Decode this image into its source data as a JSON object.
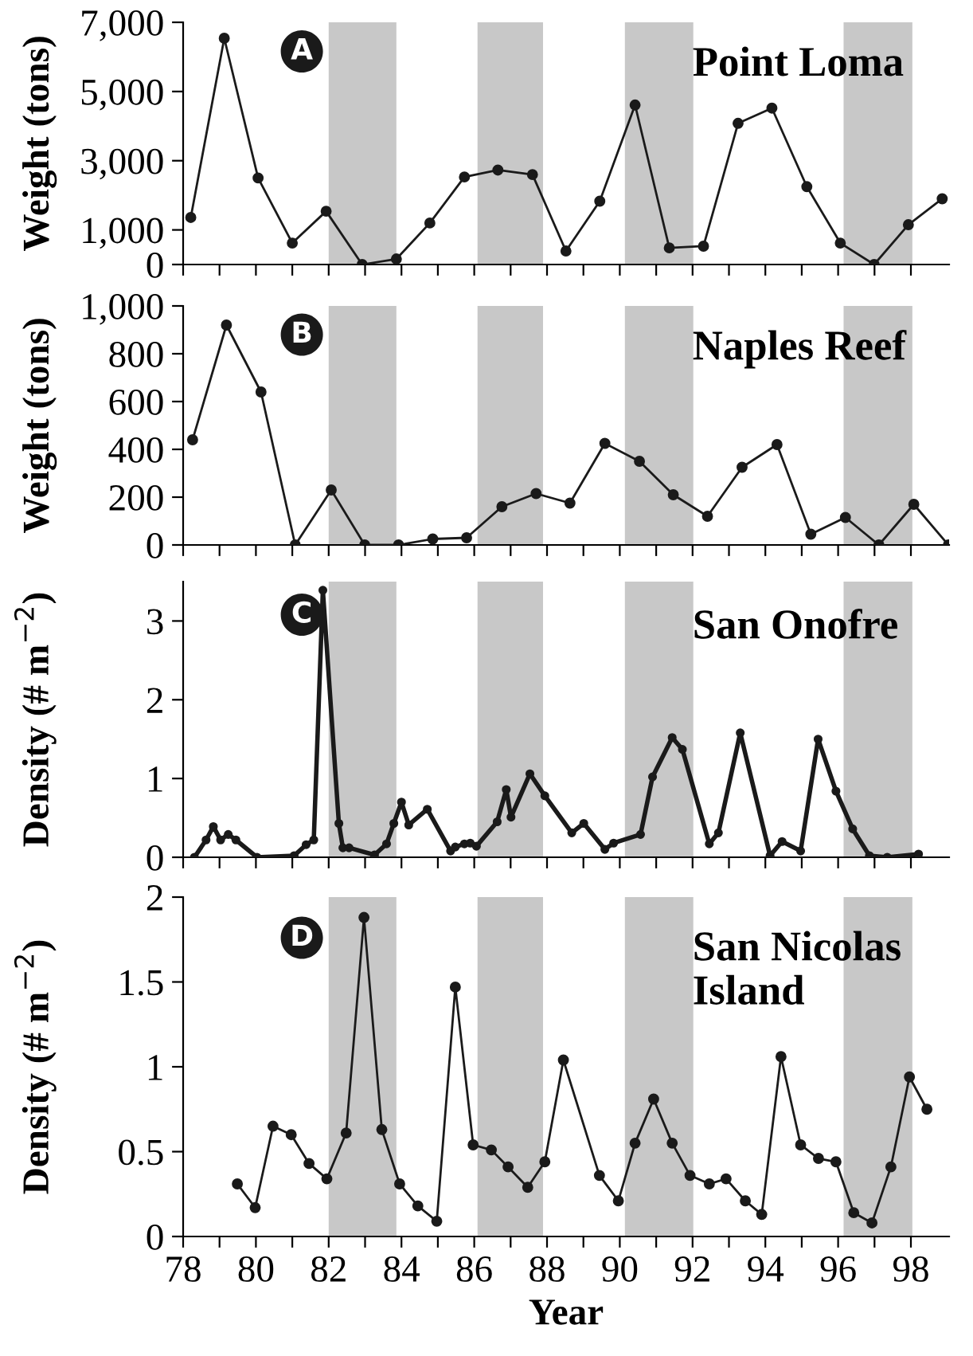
{
  "chart_data": [
    {
      "type": "line",
      "title": "Point Loma",
      "ylabel": "Weight (tons)",
      "annotations": [
        "A"
      ],
      "marker": "circle",
      "tick_labels": "y",
      "x": [
        78.21,
        79.13,
        80.06,
        81.0,
        81.93,
        82.92,
        83.86,
        84.78,
        85.73,
        86.65,
        87.6,
        88.52,
        89.45,
        90.42,
        91.36,
        92.3,
        93.25,
        94.18,
        95.14,
        96.06,
        96.99,
        97.93,
        98.86
      ],
      "series": [
        {
          "color": "#1a1a1a",
          "values": [
            1360,
            6540,
            2500,
            620,
            1540,
            0,
            160,
            1200,
            2530,
            2730,
            2600,
            390,
            1830,
            4610,
            480,
            530,
            4080,
            4520,
            2250,
            620,
            0,
            1150,
            1900
          ]
        }
      ],
      "bands": [
        {
          "axis": "x",
          "from": 82,
          "to": 83.86,
          "color": "#c8c8c8"
        },
        {
          "axis": "x",
          "from": 86.09,
          "to": 87.89,
          "color": "#c8c8c8"
        },
        {
          "axis": "x",
          "from": 90.14,
          "to": 92.02,
          "color": "#c8c8c8"
        },
        {
          "axis": "x",
          "from": 96.15,
          "to": 98.04,
          "color": "#c8c8c8"
        }
      ],
      "xlim": [
        78,
        99.05
      ],
      "xticks": [
        78,
        {
          "value": 79,
          "label": null
        },
        80,
        {
          "value": 81,
          "label": null
        },
        82,
        {
          "value": 83,
          "label": null
        },
        84,
        {
          "value": 85,
          "label": null
        },
        86,
        {
          "value": 87,
          "label": null
        },
        88,
        {
          "value": 89,
          "label": null
        },
        90,
        {
          "value": 91,
          "label": null
        },
        92,
        {
          "value": 93,
          "label": null
        },
        94,
        {
          "value": 95,
          "label": null
        },
        96,
        {
          "value": 97,
          "label": null
        },
        98
      ],
      "ylim": [
        0,
        7000
      ],
      "yticks": [
        {
          "value": 0,
          "label": "0"
        },
        {
          "value": 1000,
          "label": "1,000"
        },
        {
          "value": 3000,
          "label": "3,000"
        },
        {
          "value": 5000,
          "label": "5,000"
        },
        {
          "value": 7000,
          "label": "7,000"
        }
      ]
    },
    {
      "type": "line",
      "title": "Naples Reef",
      "ylabel": "Weight (tons)",
      "annotations": [
        "B"
      ],
      "marker": "circle",
      "tick_labels": "y",
      "x": [
        78.26,
        79.19,
        80.14,
        81.08,
        82.07,
        82.99,
        83.92,
        84.86,
        85.79,
        86.76,
        87.7,
        88.63,
        89.59,
        90.54,
        91.47,
        92.41,
        93.36,
        94.32,
        95.25,
        96.2,
        97.12,
        98.08,
        99.03
      ],
      "series": [
        {
          "color": "#1a1a1a",
          "values": [
            440,
            920,
            640,
            0,
            230,
            0,
            0,
            25,
            30,
            160,
            215,
            175,
            425,
            350,
            210,
            120,
            325,
            420,
            45,
            115,
            0,
            170,
            0
          ]
        }
      ],
      "bands": [
        {
          "axis": "x",
          "from": 82,
          "to": 83.86,
          "color": "#c8c8c8"
        },
        {
          "axis": "x",
          "from": 86.09,
          "to": 87.89,
          "color": "#c8c8c8"
        },
        {
          "axis": "x",
          "from": 90.14,
          "to": 92.02,
          "color": "#c8c8c8"
        },
        {
          "axis": "x",
          "from": 96.15,
          "to": 98.04,
          "color": "#c8c8c8"
        }
      ],
      "xlim": [
        78,
        99.05
      ],
      "xticks": [
        78,
        {
          "value": 79,
          "label": null
        },
        80,
        {
          "value": 81,
          "label": null
        },
        82,
        {
          "value": 83,
          "label": null
        },
        84,
        {
          "value": 85,
          "label": null
        },
        86,
        {
          "value": 87,
          "label": null
        },
        88,
        {
          "value": 89,
          "label": null
        },
        90,
        {
          "value": 91,
          "label": null
        },
        92,
        {
          "value": 93,
          "label": null
        },
        94,
        {
          "value": 95,
          "label": null
        },
        96,
        {
          "value": 97,
          "label": null
        },
        98
      ],
      "ylim": [
        0,
        1000
      ],
      "yticks": [
        0,
        200,
        400,
        600,
        800,
        {
          "value": 1000,
          "label": "1,000"
        }
      ]
    },
    {
      "type": "line",
      "title": "San Onofre",
      "ylabel": "Density (# m$^{−2}$)",
      "annotations": [
        "C"
      ],
      "marker": "circle",
      "tick_labels": "y",
      "x": [
        78.31,
        78.63,
        78.83,
        79.03,
        79.24,
        79.45,
        80.03,
        81.05,
        81.38,
        81.59,
        81.84,
        82.28,
        82.39,
        82.56,
        83.26,
        83.59,
        83.79,
        84.0,
        84.2,
        84.71,
        85.35,
        85.48,
        85.73,
        85.89,
        86.06,
        86.63,
        86.88,
        87.01,
        87.53,
        87.94,
        88.68,
        89.01,
        89.59,
        89.83,
        90.57,
        90.9,
        91.44,
        91.72,
        92.46,
        92.71,
        93.31,
        94.13,
        94.46,
        94.97,
        95.45,
        95.94,
        96.4,
        96.86,
        97.35,
        98.21
      ],
      "series": [
        {
          "color": "#1a1a1a",
          "values": [
            0,
            0.22,
            0.39,
            0.22,
            0.29,
            0.22,
            0,
            0.02,
            0.16,
            0.22,
            3.39,
            0.43,
            0.12,
            0.12,
            0.03,
            0.17,
            0.43,
            0.7,
            0.41,
            0.61,
            0.08,
            0.13,
            0.17,
            0.18,
            0.14,
            0.45,
            0.86,
            0.51,
            1.06,
            0.78,
            0.31,
            0.43,
            0.1,
            0.18,
            0.29,
            1.02,
            1.52,
            1.37,
            0.17,
            0.31,
            1.58,
            0.02,
            0.2,
            0.08,
            1.5,
            0.84,
            0.36,
            0.02,
            0,
            0.04
          ]
        }
      ],
      "bands": [
        {
          "axis": "x",
          "from": 82,
          "to": 83.86,
          "color": "#c8c8c8"
        },
        {
          "axis": "x",
          "from": 86.09,
          "to": 87.89,
          "color": "#c8c8c8"
        },
        {
          "axis": "x",
          "from": 90.14,
          "to": 92.02,
          "color": "#c8c8c8"
        },
        {
          "axis": "x",
          "from": 96.15,
          "to": 98.04,
          "color": "#c8c8c8"
        }
      ],
      "xlim": [
        78,
        99.05
      ],
      "xticks": [
        78,
        {
          "value": 79,
          "label": null
        },
        80,
        {
          "value": 81,
          "label": null
        },
        82,
        {
          "value": 83,
          "label": null
        },
        84,
        {
          "value": 85,
          "label": null
        },
        86,
        {
          "value": 87,
          "label": null
        },
        88,
        {
          "value": 89,
          "label": null
        },
        90,
        {
          "value": 91,
          "label": null
        },
        92,
        {
          "value": 93,
          "label": null
        },
        94,
        {
          "value": 95,
          "label": null
        },
        96,
        {
          "value": 97,
          "label": null
        },
        98
      ],
      "ylim": [
        0,
        3.5
      ],
      "yticks": [
        0,
        1,
        2,
        3
      ]
    },
    {
      "type": "line",
      "title": "San Nicolas Island",
      "ylabel": "Density (# m$^{−2}$)",
      "xlabel": "Year",
      "annotations": [
        "D"
      ],
      "marker": "circle",
      "x": [
        79.49,
        79.98,
        80.47,
        80.97,
        81.46,
        81.95,
        82.48,
        82.97,
        83.46,
        83.95,
        84.45,
        84.97,
        85.48,
        85.97,
        86.47,
        86.93,
        87.47,
        87.94,
        88.45,
        89.44,
        89.96,
        90.42,
        90.93,
        91.44,
        91.93,
        92.46,
        92.92,
        93.45,
        93.9,
        94.43,
        94.97,
        95.46,
        95.94,
        96.43,
        96.93,
        97.45,
        97.96,
        98.44
      ],
      "series": [
        {
          "color": "#1a1a1a",
          "values": [
            0.31,
            0.17,
            0.65,
            0.6,
            0.43,
            0.34,
            0.61,
            1.88,
            0.63,
            0.31,
            0.18,
            0.09,
            1.47,
            0.54,
            0.51,
            0.41,
            0.29,
            0.44,
            1.04,
            0.36,
            0.21,
            0.55,
            0.81,
            0.55,
            0.36,
            0.31,
            0.34,
            0.21,
            0.13,
            1.06,
            0.54,
            0.46,
            0.44,
            0.14,
            0.08,
            0.41,
            0.94,
            0.75
          ]
        }
      ],
      "bands": [
        {
          "axis": "x",
          "from": 82,
          "to": 83.86,
          "color": "#c8c8c8"
        },
        {
          "axis": "x",
          "from": 86.09,
          "to": 87.89,
          "color": "#c8c8c8"
        },
        {
          "axis": "x",
          "from": 90.14,
          "to": 92.02,
          "color": "#c8c8c8"
        },
        {
          "axis": "x",
          "from": 96.15,
          "to": 98.04,
          "color": "#c8c8c8"
        }
      ],
      "xlim": [
        78,
        99.05
      ],
      "xticks": [
        78,
        {
          "value": 79,
          "label": null
        },
        80,
        {
          "value": 81,
          "label": null
        },
        82,
        {
          "value": 83,
          "label": null
        },
        84,
        {
          "value": 85,
          "label": null
        },
        86,
        {
          "value": 87,
          "label": null
        },
        88,
        {
          "value": 89,
          "label": null
        },
        90,
        {
          "value": 91,
          "label": null
        },
        92,
        {
          "value": 93,
          "label": null
        },
        94,
        {
          "value": 95,
          "label": null
        },
        96,
        {
          "value": 97,
          "label": null
        },
        98
      ],
      "ylim": [
        0,
        2
      ],
      "yticks": [
        0,
        0.5,
        1,
        1.5,
        2
      ]
    }
  ]
}
